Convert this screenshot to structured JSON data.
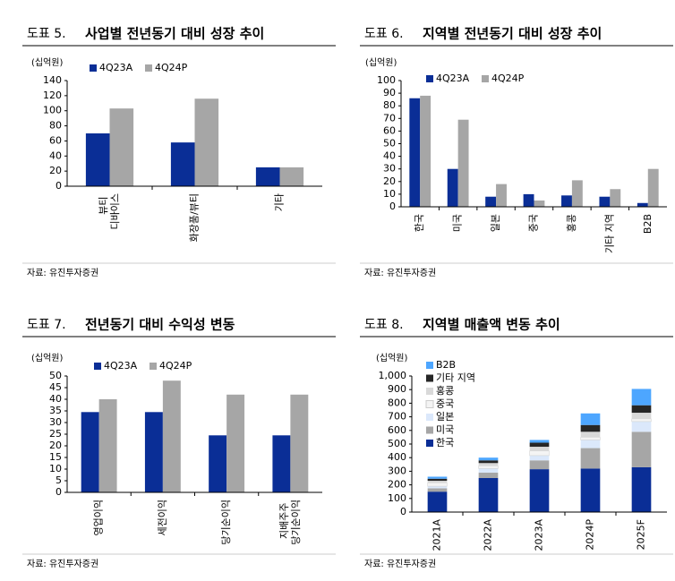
{
  "chart_data": [
    {
      "type": "bar",
      "figure_label": "도표 5.",
      "title": "사업별 전년동기 대비 성장 추이",
      "unit": "(십억원)",
      "source": "자료: 유진투자증권",
      "categories": [
        "뷰티 디바이스",
        "화장품/뷰티",
        "기타"
      ],
      "series": [
        {
          "name": "4Q23A",
          "color": "#0a2e96",
          "values": [
            70,
            58,
            25
          ]
        },
        {
          "name": "4Q24P",
          "color": "#a6a6a6",
          "values": [
            103,
            116,
            25
          ]
        }
      ],
      "ylim": [
        0,
        140
      ],
      "yticks": [
        0,
        20,
        40,
        60,
        80,
        100,
        120,
        140
      ],
      "legend": "top-left"
    },
    {
      "type": "bar",
      "figure_label": "도표 6.",
      "title": "지역별 전년동기 대비 성장 추이",
      "unit": "(십억원)",
      "source": "자료: 유진투자증권",
      "categories": [
        "한국",
        "미국",
        "일본",
        "중국",
        "홍콩",
        "기타 지역",
        "B2B"
      ],
      "series": [
        {
          "name": "4Q23A",
          "color": "#0a2e96",
          "values": [
            86,
            30,
            8,
            10,
            9,
            8,
            3
          ]
        },
        {
          "name": "4Q24P",
          "color": "#a6a6a6",
          "values": [
            88,
            69,
            18,
            5,
            21,
            14,
            30
          ]
        }
      ],
      "ylim": [
        0,
        100
      ],
      "yticks": [
        0,
        10,
        20,
        30,
        40,
        50,
        60,
        70,
        80,
        90,
        100
      ],
      "legend": "top-left"
    },
    {
      "type": "bar",
      "figure_label": "도표 7.",
      "title": "전년동기 대비 수익성 변동",
      "unit": "(십억원)",
      "source": "자료: 유진투자증권",
      "categories": [
        "영업이익",
        "세전이익",
        "당기순이익",
        "지배주주 당기순이익"
      ],
      "series": [
        {
          "name": "4Q23A",
          "color": "#0a2e96",
          "values": [
            34.5,
            34.5,
            24.5,
            24.5
          ]
        },
        {
          "name": "4Q24P",
          "color": "#a6a6a6",
          "values": [
            40,
            48,
            42,
            42
          ]
        }
      ],
      "ylim": [
        0,
        50
      ],
      "yticks": [
        0,
        5,
        10,
        15,
        20,
        25,
        30,
        35,
        40,
        45,
        50
      ],
      "legend": "top-left"
    },
    {
      "type": "stacked_bar",
      "figure_label": "도표 8.",
      "title": "지역별 매출액 변동 추이",
      "unit": "(십억원)",
      "source": "자료: 유진투자증권",
      "categories": [
        "2021A",
        "2022A",
        "2023A",
        "2024P",
        "2025F"
      ],
      "series": [
        {
          "name": "한국",
          "color": "#0a2e96",
          "values": [
            150,
            250,
            315,
            320,
            330
          ]
        },
        {
          "name": "미국",
          "color": "#a6a6a6",
          "values": [
            25,
            40,
            65,
            150,
            260
          ]
        },
        {
          "name": "일본",
          "color": "#dbe8fb",
          "values": [
            15,
            30,
            35,
            60,
            75
          ]
        },
        {
          "name": "중국",
          "color": "#f4f4f4",
          "values": [
            25,
            20,
            35,
            20,
            20
          ]
        },
        {
          "name": "홍콩",
          "color": "#d9d9d9",
          "values": [
            15,
            20,
            30,
            40,
            45
          ]
        },
        {
          "name": "기타 지역",
          "color": "#262626",
          "values": [
            15,
            20,
            30,
            50,
            55
          ]
        },
        {
          "name": "B2B",
          "color": "#4da6ff",
          "values": [
            15,
            20,
            20,
            85,
            120
          ]
        }
      ],
      "ylim": [
        0,
        1000
      ],
      "yticks": [
        0,
        100,
        200,
        300,
        400,
        500,
        600,
        700,
        800,
        900,
        {
          "value": 1000,
          "label": "1,000"
        }
      ],
      "legend": "top-left"
    }
  ]
}
